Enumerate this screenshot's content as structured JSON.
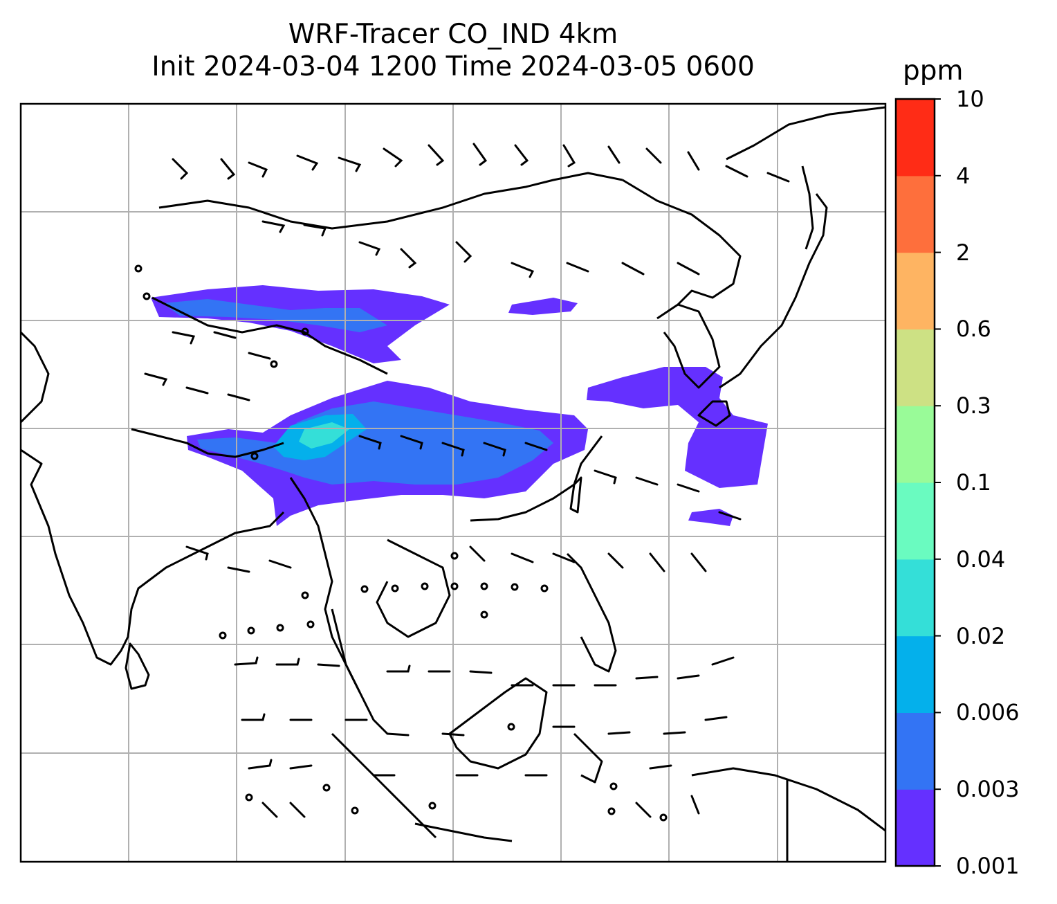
{
  "title": {
    "line1": "WRF-Tracer CO_IND 4km",
    "line2": "Init 2024-03-04 1200 Time 2024-03-05 0600"
  },
  "colorbar": {
    "unit": "ppm",
    "ticks": [
      "0.001",
      "0.003",
      "0.006",
      "0.02",
      "0.04",
      "0.1",
      "0.3",
      "0.6",
      "2",
      "4",
      "10"
    ],
    "colors": [
      "#6530ff",
      "#3374f4",
      "#04b0eb",
      "#34dfd8",
      "#6afbc0",
      "#99fb98",
      "#cde184",
      "#feb462",
      "#fe6f3c",
      "#ff2c16"
    ]
  },
  "map": {
    "gridlines": true,
    "overlay": "wind barbs",
    "coastline_color": "#000000",
    "grid_color": "#b0b0b0"
  }
}
